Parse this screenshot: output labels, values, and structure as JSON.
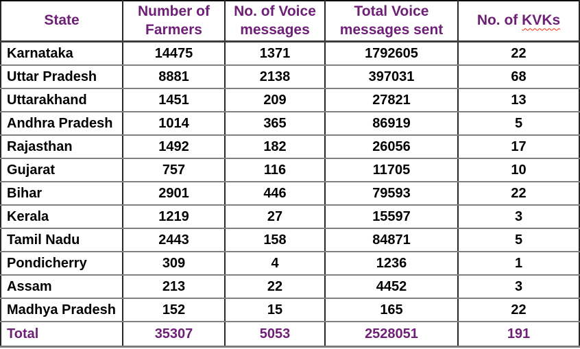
{
  "chart_data": {
    "type": "table",
    "columns": [
      "State",
      "Number of Farmers",
      "No. of Voice messages",
      "Total Voice messages sent",
      "No. of KVKs"
    ],
    "kvks_header_parts": {
      "prefix": "No. of ",
      "misspelled_word": "KVKs"
    },
    "rows": [
      {
        "state": "Karnataka",
        "farmers": 14475,
        "voice_messages": 1371,
        "total_voice_messages_sent": 1792605,
        "kvks": 22
      },
      {
        "state": "Uttar Pradesh",
        "farmers": 8881,
        "voice_messages": 2138,
        "total_voice_messages_sent": 397031,
        "kvks": 68
      },
      {
        "state": "Uttarakhand",
        "farmers": 1451,
        "voice_messages": 209,
        "total_voice_messages_sent": 27821,
        "kvks": 13
      },
      {
        "state": "Andhra Pradesh",
        "farmers": 1014,
        "voice_messages": 365,
        "total_voice_messages_sent": 86919,
        "kvks": 5
      },
      {
        "state": "Rajasthan",
        "farmers": 1492,
        "voice_messages": 182,
        "total_voice_messages_sent": 26056,
        "kvks": 17
      },
      {
        "state": "Gujarat",
        "farmers": 757,
        "voice_messages": 116,
        "total_voice_messages_sent": 11705,
        "kvks": 10
      },
      {
        "state": "Bihar",
        "farmers": 2901,
        "voice_messages": 446,
        "total_voice_messages_sent": 79593,
        "kvks": 22
      },
      {
        "state": "Kerala",
        "farmers": 1219,
        "voice_messages": 27,
        "total_voice_messages_sent": 15597,
        "kvks": 3
      },
      {
        "state": "Tamil Nadu",
        "farmers": 2443,
        "voice_messages": 158,
        "total_voice_messages_sent": 84871,
        "kvks": 5
      },
      {
        "state": "Pondicherry",
        "farmers": 309,
        "voice_messages": 4,
        "total_voice_messages_sent": 1236,
        "kvks": 1
      },
      {
        "state": "Assam",
        "farmers": 213,
        "voice_messages": 22,
        "total_voice_messages_sent": 4452,
        "kvks": 3
      },
      {
        "state": "Madhya Pradesh",
        "farmers": 152,
        "voice_messages": 15,
        "total_voice_messages_sent": 165,
        "kvks": 22
      }
    ],
    "total_row": {
      "label": "Total",
      "farmers": 35307,
      "voice_messages": 5053,
      "total_voice_messages_sent": 2528051,
      "kvks": 191
    }
  },
  "colors": {
    "header_text": "#6E2077",
    "total_text": "#6E2077",
    "body_text": "#000000",
    "grid_horizontal": "#7F7F7F",
    "grid_vertical": "#262626",
    "outer_border": "#000000",
    "spellcheck_underline": "#FF2A00"
  }
}
